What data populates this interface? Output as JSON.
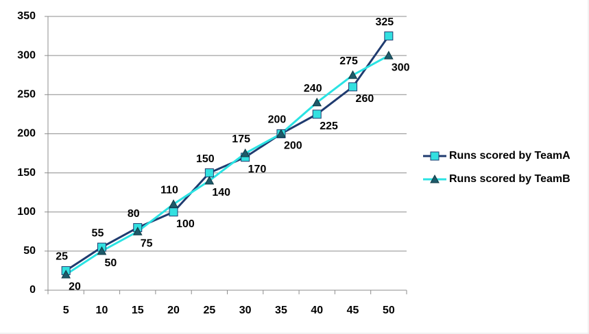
{
  "chart_data": {
    "type": "line",
    "categories": [
      "5",
      "10",
      "15",
      "20",
      "25",
      "30",
      "35",
      "40",
      "45",
      "50"
    ],
    "series": [
      {
        "name": "Runs scored by TeamA",
        "color": "#1f3b6f",
        "marker_color": "#33e0e0",
        "marker": "square",
        "values": [
          25,
          55,
          80,
          100,
          150,
          170,
          200,
          225,
          260,
          325
        ]
      },
      {
        "name": "Runs scored by TeamB",
        "color": "#2ae3e3",
        "marker_color": "#1e5a6a",
        "marker": "triangle",
        "values": [
          20,
          50,
          75,
          110,
          140,
          175,
          200,
          240,
          275,
          300
        ]
      }
    ],
    "ylim": [
      0,
      350
    ],
    "yticks": [
      0,
      50,
      100,
      150,
      200,
      250,
      300,
      350
    ],
    "grid": true,
    "legend": "right"
  }
}
